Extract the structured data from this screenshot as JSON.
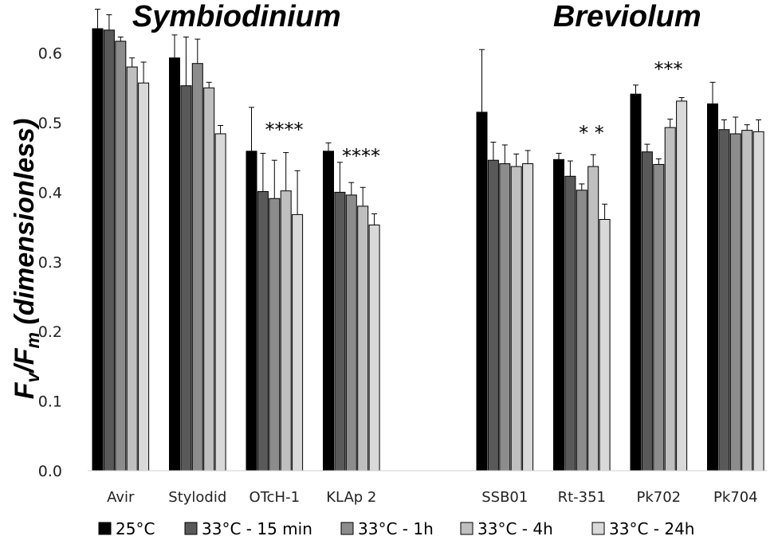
{
  "chart_data": {
    "type": "bar",
    "ylabel": {
      "main": "F",
      "sub1": "v",
      "slash": "/F",
      "sub2": "m",
      "rest": " (dimensionless)"
    },
    "ylim": [
      0,
      0.65
    ],
    "yticks": [
      "0.0",
      "0.1",
      "0.2",
      "0.3",
      "0.4",
      "0.5",
      "0.6"
    ],
    "grid": false,
    "legend_position": "bottom",
    "series": [
      {
        "name": "25°C",
        "color": "#000000"
      },
      {
        "name": "33°C - 15 min",
        "color": "#595959"
      },
      {
        "name": "33°C - 1h",
        "color": "#8c8c8c"
      },
      {
        "name": "33°C - 4h",
        "color": "#bfbfbf"
      },
      {
        "name": "33°C - 24h",
        "color": "#d9d9d9"
      }
    ],
    "groups": [
      {
        "title": "Symbiodinium",
        "categories": [
          {
            "label": "Avir",
            "values": [
              0.635,
              0.633,
              0.617,
              0.58,
              0.557
            ],
            "errors": [
              0.028,
              0.022,
              0.006,
              0.013,
              0.03
            ],
            "stars": ""
          },
          {
            "label": "Stylodid",
            "values": [
              0.593,
              0.553,
              0.585,
              0.55,
              0.484
            ],
            "errors": [
              0.033,
              0.07,
              0.035,
              0.008,
              0.012
            ],
            "stars": ""
          },
          {
            "label": "OTcH-1",
            "values": [
              0.459,
              0.401,
              0.391,
              0.402,
              0.368
            ],
            "errors": [
              0.063,
              0.055,
              0.055,
              0.055,
              0.063
            ],
            "stars": "****"
          },
          {
            "label": "KLAp 2",
            "values": [
              0.459,
              0.4,
              0.396,
              0.38,
              0.353
            ],
            "errors": [
              0.012,
              0.043,
              0.018,
              0.027,
              0.016
            ],
            "stars": "****"
          }
        ]
      },
      {
        "title": "Breviolum",
        "categories": [
          {
            "label": "SSB01",
            "values": [
              0.515,
              0.446,
              0.441,
              0.437,
              0.441
            ],
            "errors": [
              0.09,
              0.026,
              0.027,
              0.018,
              0.019
            ],
            "stars": ""
          },
          {
            "label": "Rt-351",
            "values": [
              0.447,
              0.423,
              0.403,
              0.437,
              0.361
            ],
            "errors": [
              0.009,
              0.022,
              0.009,
              0.017,
              0.022
            ],
            "stars": "*   *"
          },
          {
            "label": "Pk702",
            "values": [
              0.541,
              0.458,
              0.44,
              0.493,
              0.531
            ],
            "errors": [
              0.013,
              0.011,
              0.008,
              0.012,
              0.005
            ],
            "stars": "***"
          },
          {
            "label": "Pk704",
            "values": [
              0.527,
              0.49,
              0.484,
              0.489,
              0.487
            ],
            "errors": [
              0.031,
              0.014,
              0.024,
              0.008,
              0.017
            ],
            "stars": ""
          }
        ]
      }
    ]
  }
}
